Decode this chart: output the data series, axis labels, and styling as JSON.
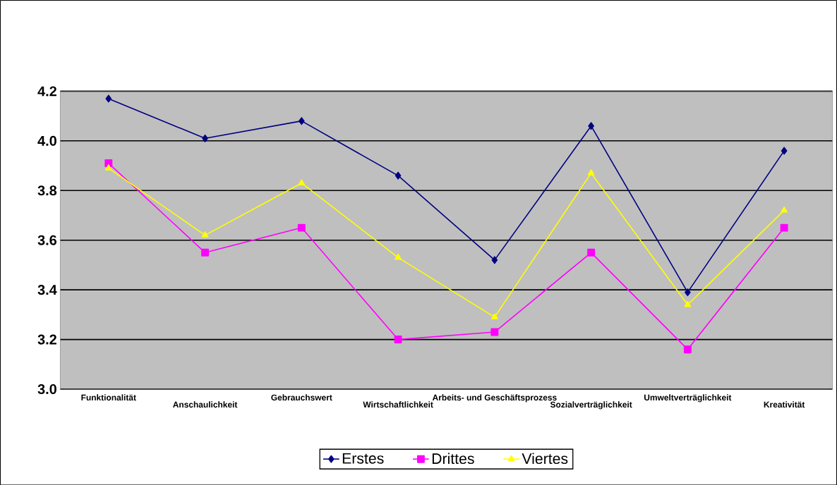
{
  "chart_data": {
    "type": "line",
    "categories": [
      "Funktionalität",
      "Anschaulichkeit",
      "Gebrauchswert",
      "Wirtschaftlichkeit",
      "Arbeits- und Geschäftsprozess",
      "Sozialverträglichkeit",
      "Umweltverträglichkeit",
      "Kreativität"
    ],
    "series": [
      {
        "name": "Erstes",
        "color": "#000080",
        "marker": "diamond",
        "values": [
          4.17,
          4.01,
          4.08,
          3.86,
          3.52,
          4.06,
          3.39,
          3.96
        ]
      },
      {
        "name": "Drittes",
        "color": "#ff00ff",
        "marker": "square",
        "values": [
          3.91,
          3.55,
          3.65,
          3.2,
          3.23,
          3.55,
          3.16,
          3.65
        ]
      },
      {
        "name": "Viertes",
        "color": "#ffff00",
        "marker": "triangle",
        "values": [
          3.89,
          3.62,
          3.83,
          3.53,
          3.29,
          3.87,
          3.34,
          3.72
        ]
      }
    ],
    "ylim": [
      3.0,
      4.2
    ],
    "yticks": [
      {
        "value": 3.0,
        "label": "3.0"
      },
      3.2,
      3.4,
      3.6,
      3.8,
      {
        "value": 4.0,
        "label": "4.0"
      },
      4.2
    ],
    "grid": "y",
    "legend": "bottom",
    "line_style": "solid"
  }
}
